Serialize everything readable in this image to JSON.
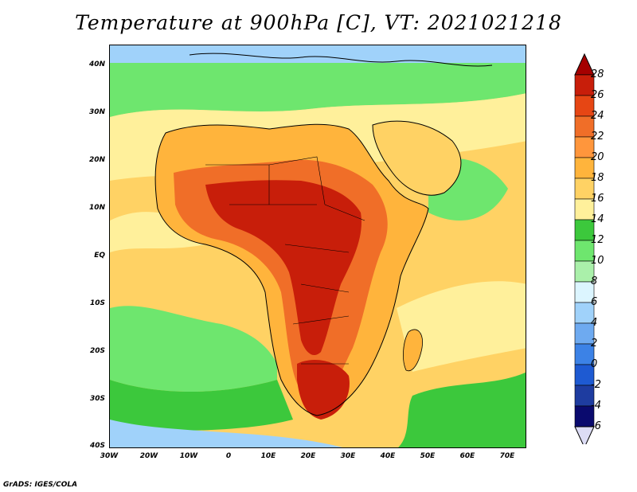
{
  "title": "Temperature at 900hPa [C], VT: 2021021218",
  "credit": "GrADS: IGES/COLA",
  "axes": {
    "lat_labels": [
      "40N",
      "30N",
      "20N",
      "10N",
      "EQ",
      "10S",
      "20S",
      "30S",
      "40S"
    ],
    "lon_labels": [
      "30W",
      "20W",
      "10W",
      "0",
      "10E",
      "20E",
      "30E",
      "40E",
      "50E",
      "60E",
      "70E"
    ]
  },
  "colorbar": {
    "labels": [
      "28",
      "26",
      "24",
      "22",
      "20",
      "18",
      "16",
      "14",
      "12",
      "10",
      "8",
      "6",
      "4",
      "2",
      "0",
      "-2",
      "-4",
      "-6"
    ],
    "colors": [
      "#dcdcf5",
      "#0a0a6e",
      "#1e3ca0",
      "#1e5ad2",
      "#3c82e6",
      "#6eaaf0",
      "#a0d2fa",
      "#dcf5ff",
      "#aaf0aa",
      "#6ee66e",
      "#3cc83c",
      "#fff09b",
      "#ffd264",
      "#ffb43c",
      "#ff963c",
      "#f06e28",
      "#e64614",
      "#c81e0a",
      "#a50000"
    ]
  },
  "palette": {
    "ocean_warm": "#ffd264",
    "ocean_mid": "#fff09b",
    "ocean_cool": "#6ee66e",
    "ocean_cold": "#3cc83c",
    "polar": "#a0d2fa",
    "hot": "#f06e28",
    "hottest": "#c81e0a",
    "boundary": "#000000"
  }
}
